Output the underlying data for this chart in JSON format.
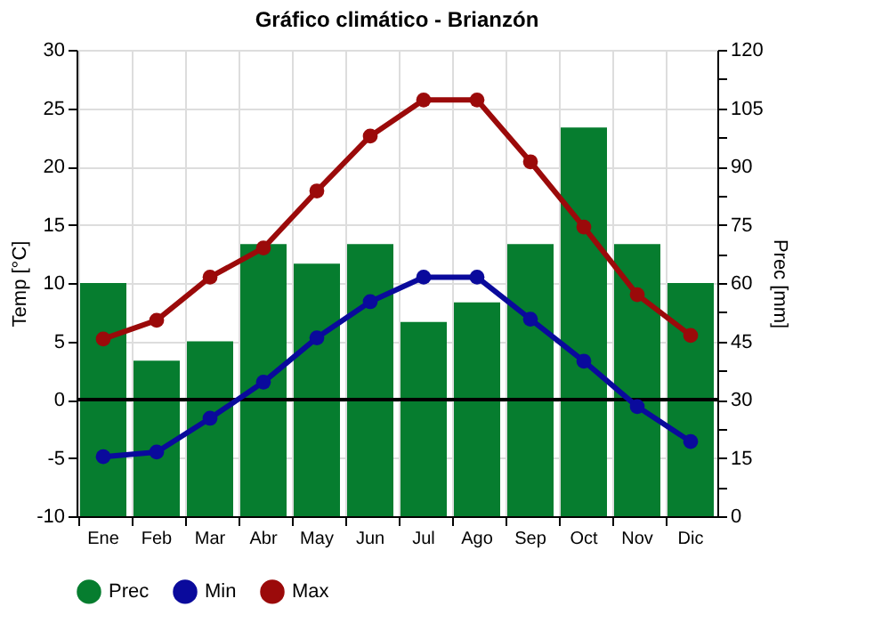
{
  "chart_data": {
    "type": "bar",
    "title": "Gráfico climático - Brianzón",
    "ylabel": "Temp [°C]",
    "y2label": "Prec [mm]",
    "categories": [
      "Ene",
      "Feb",
      "Mar",
      "Abr",
      "May",
      "Jun",
      "Jul",
      "Ago",
      "Sep",
      "Oct",
      "Nov",
      "Dic"
    ],
    "series": [
      {
        "name": "Prec",
        "axis": "y2",
        "color": "#067d2f",
        "values": [
          60,
          40,
          45,
          70,
          65,
          70,
          50,
          55,
          70,
          100,
          70,
          60
        ]
      },
      {
        "name": "Min",
        "type": "line",
        "color": "#0a0a9c",
        "values": [
          -4.9,
          -4.5,
          -1.6,
          1.5,
          5.3,
          8.4,
          10.5,
          10.5,
          6.9,
          3.3,
          -0.6,
          -3.6
        ]
      },
      {
        "name": "Max",
        "type": "line",
        "color": "#9b0a0a",
        "values": [
          5.2,
          6.8,
          10.5,
          13,
          17.9,
          22.6,
          25.7,
          25.7,
          20.4,
          14.8,
          9,
          5.5
        ]
      }
    ],
    "ylim": [
      -10,
      30
    ],
    "yticks": [
      -10,
      -5,
      0,
      5,
      10,
      15,
      20,
      25,
      30
    ],
    "y2lim": [
      0,
      120
    ],
    "y2ticks": [
      0,
      {
        "value": 7.5,
        "label": null
      },
      15,
      {
        "value": 22.5,
        "label": null
      },
      30,
      {
        "value": 37.5,
        "label": null
      },
      45,
      {
        "value": 52.5,
        "label": null
      },
      60,
      {
        "value": 67.5,
        "label": null
      },
      75,
      {
        "value": 82.5,
        "label": null
      },
      90,
      {
        "value": 97.5,
        "label": null
      },
      105,
      {
        "value": 112.5,
        "label": null
      },
      120
    ],
    "ref_lines": [
      {
        "axis": "y",
        "value": 0,
        "color": "#000000"
      }
    ],
    "grid": true,
    "legend": "bottom",
    "marker": "circle",
    "line_style": "solid"
  }
}
